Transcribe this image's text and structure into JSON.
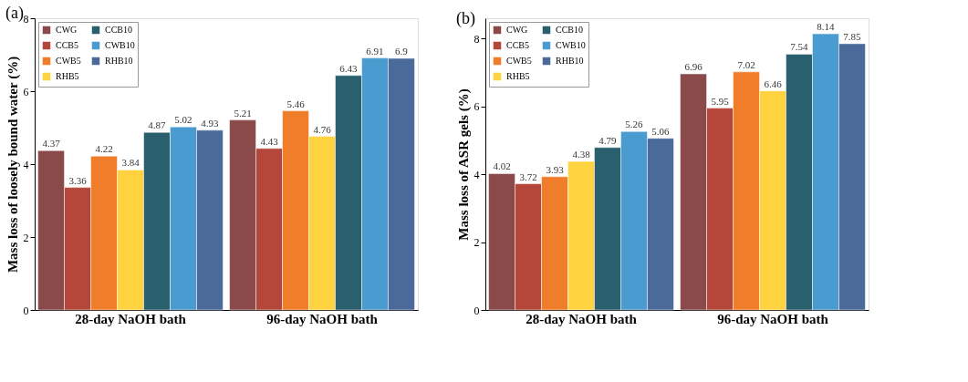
{
  "chart_data": [
    {
      "type": "bar",
      "title": "(a)",
      "ylabel": "Mass loss of loosely bound water (%)",
      "categories": [
        "28-day NaOH bath",
        "96-day NaOH bath"
      ],
      "ylim": [
        0,
        8
      ],
      "yticks": [
        0,
        2,
        4,
        6,
        8
      ],
      "data_labels": true,
      "legend": "top left",
      "grid": false,
      "series": [
        {
          "name": "CWG",
          "color": "#8b4a4a",
          "values": [
            4.37,
            5.21
          ]
        },
        {
          "name": "CCB5",
          "color": "#b5473a",
          "values": [
            3.36,
            4.43
          ]
        },
        {
          "name": "CWB5",
          "color": "#f07d2a",
          "values": [
            4.22,
            5.46
          ]
        },
        {
          "name": "RHB5",
          "color": "#ffd23f",
          "values": [
            3.84,
            4.76
          ]
        },
        {
          "name": "CCB10",
          "color": "#2a5f6e",
          "values": [
            4.87,
            6.43
          ]
        },
        {
          "name": "CWB10",
          "color": "#4a9bd0",
          "values": [
            5.02,
            6.91
          ]
        },
        {
          "name": "RHB10",
          "color": "#4a6a9a",
          "values": [
            4.93,
            6.9
          ]
        }
      ]
    },
    {
      "type": "bar",
      "title": "(b)",
      "ylabel": "Mass loss of ASR gels (%)",
      "categories": [
        "28-day NaOH bath",
        "96-day NaOH bath"
      ],
      "ylim": [
        0,
        8.6
      ],
      "yticks": [
        0,
        2,
        4,
        6,
        8
      ],
      "data_labels": true,
      "legend": "top left",
      "grid": false,
      "series": [
        {
          "name": "CWG",
          "color": "#8b4a4a",
          "values": [
            4.02,
            6.96
          ]
        },
        {
          "name": "CCB5",
          "color": "#b5473a",
          "values": [
            3.72,
            5.95
          ]
        },
        {
          "name": "CWB5",
          "color": "#f07d2a",
          "values": [
            3.93,
            7.02
          ]
        },
        {
          "name": "RHB5",
          "color": "#ffd23f",
          "values": [
            4.38,
            6.46
          ]
        },
        {
          "name": "CCB10",
          "color": "#2a5f6e",
          "values": [
            4.79,
            7.54
          ]
        },
        {
          "name": "CWB10",
          "color": "#4a9bd0",
          "values": [
            5.26,
            8.14
          ]
        },
        {
          "name": "RHB10",
          "color": "#4a6a9a",
          "values": [
            5.06,
            7.85
          ]
        }
      ]
    }
  ]
}
